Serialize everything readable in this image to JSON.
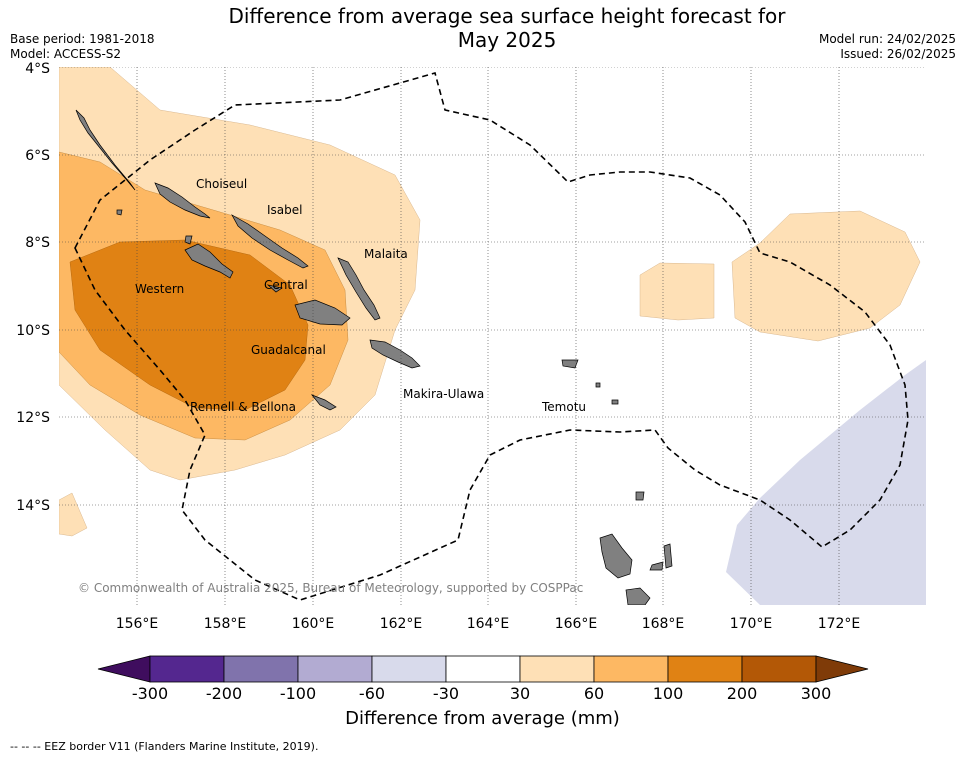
{
  "title_line1": "Difference from average sea surface height forecast for",
  "title_line2": "May 2025",
  "base_period": "Base period: 1981-2018",
  "model": "Model: ACCESS-S2",
  "model_run": "Model run: 24/02/2025",
  "issued": "Issued: 26/02/2025",
  "lat_labels": [
    "4°S",
    "6°S",
    "8°S",
    "10°S",
    "12°S",
    "14°S"
  ],
  "lon_labels": [
    "156°E",
    "158°E",
    "160°E",
    "162°E",
    "164°E",
    "166°E",
    "168°E",
    "170°E",
    "172°E"
  ],
  "provinces": [
    "Choiseul",
    "Isabel",
    "Malaita",
    "Western",
    "Central",
    "Guadalcanal",
    "Makira-Ulawa",
    "Rennell & Bellona",
    "Temotu"
  ],
  "copyright": "© Commonwealth of Australia 2025, Bureau of Meteorology, supported by COSPPac",
  "colorbar": {
    "title": "Difference from average (mm)",
    "ticks": [
      "-300",
      "-200",
      "-100",
      "-60",
      "-30",
      "30",
      "60",
      "100",
      "200",
      "300"
    ],
    "colors": [
      "#3f0d5e",
      "#54278f",
      "#8073ac",
      "#b2abd2",
      "#d8daeb",
      "#ffffff",
      "#fee0b6",
      "#fdb863",
      "#e08214",
      "#b35806",
      "#7f3b08"
    ]
  },
  "footer": "--  --  -- EEZ border V11 (Flanders Marine Institute, 2019)."
}
